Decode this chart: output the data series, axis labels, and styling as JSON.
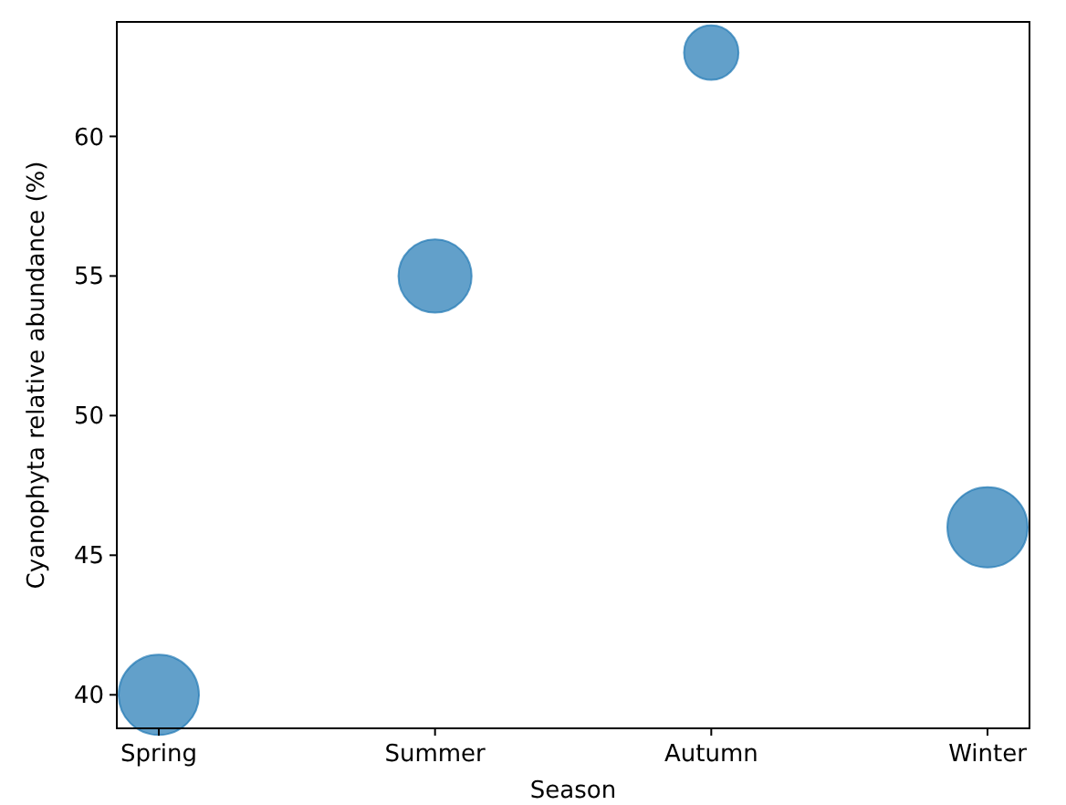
{
  "chart_data": {
    "type": "bubble",
    "xlabel": "Season",
    "ylabel": "Cyanophyta relative abundance (%)",
    "categories": [
      "Spring",
      "Summer",
      "Autumn",
      "Winter"
    ],
    "values": [
      40,
      55,
      63,
      46
    ],
    "sizes": [
      1,
      0.83,
      0.46,
      1
    ],
    "color": "#1f77b4",
    "ylim": [
      38.8,
      64.1
    ],
    "yticks": [
      40,
      45,
      50,
      55,
      60
    ],
    "grid": false
  }
}
